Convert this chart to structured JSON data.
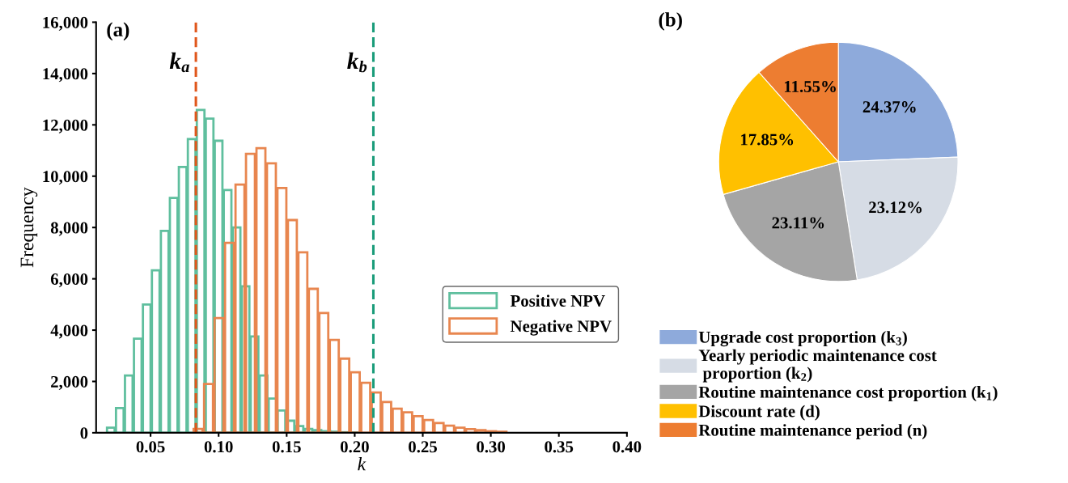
{
  "chart_data": [
    {
      "type": "bar",
      "title": "(a)",
      "xlabel": "k",
      "ylabel": "Frequency",
      "series": [
        {
          "name": "Positive NPV",
          "color": "#5fbf9e",
          "x": [
            0.0208,
            0.0274,
            0.034,
            0.0406,
            0.0472,
            0.0538,
            0.0604,
            0.067,
            0.0736,
            0.0802,
            0.0868,
            0.0934,
            0.1,
            0.1066,
            0.1132,
            0.1198,
            0.1264,
            0.133,
            0.1396,
            0.1462,
            0.1528,
            0.1594,
            0.166,
            0.1726,
            0.1792,
            0.1858,
            0.1924,
            0.199
          ],
          "values": [
            200,
            960,
            2230,
            3670,
            5000,
            6330,
            7870,
            9150,
            10360,
            11450,
            12580,
            12240,
            11380,
            9460,
            8000,
            5710,
            3750,
            2230,
            1330,
            870,
            470,
            260,
            150,
            100,
            60,
            40,
            20,
            10
          ]
        },
        {
          "name": "Negative NPV",
          "color": "#e8864f",
          "x": [
            0.0849,
            0.0926,
            0.1003,
            0.108,
            0.1157,
            0.1234,
            0.1311,
            0.1388,
            0.1465,
            0.1542,
            0.1619,
            0.1696,
            0.1773,
            0.185,
            0.1927,
            0.2004,
            0.2081,
            0.2158,
            0.2235,
            0.2312,
            0.2389,
            0.2466,
            0.2543,
            0.262,
            0.2697,
            0.2774,
            0.2851,
            0.2928,
            0.3005,
            0.3082
          ],
          "values": [
            150,
            1900,
            4470,
            7400,
            9670,
            10870,
            11090,
            10500,
            9540,
            8290,
            7030,
            5610,
            4670,
            3620,
            2890,
            2360,
            1950,
            1570,
            1200,
            940,
            800,
            650,
            500,
            380,
            280,
            200,
            140,
            100,
            60,
            40
          ]
        }
      ],
      "ref_lines": [
        {
          "axis": "x",
          "value": 0.0833,
          "label": "k$_{a}$",
          "color": "#e0561b",
          "line_style": "dashed"
        },
        {
          "axis": "x",
          "value": 0.2137,
          "label": "k$_{b}$",
          "color": "#1a9c7a",
          "line_style": "dashed"
        }
      ],
      "xlim": [
        0.01,
        0.4
      ],
      "xticks": [
        {
          "value": 0.05,
          "label": "0.05"
        },
        {
          "value": 0.1,
          "label": "0.10"
        },
        {
          "value": 0.15,
          "label": "0.15"
        },
        {
          "value": 0.2,
          "label": "0.20"
        },
        {
          "value": 0.25,
          "label": "0.25"
        },
        {
          "value": 0.3,
          "label": "0.30"
        },
        {
          "value": 0.35,
          "label": "0.35"
        },
        {
          "value": 0.4,
          "label": "0.40"
        }
      ],
      "ylim": [
        0,
        16000
      ],
      "yticks": [
        {
          "value": 0,
          "label": "0"
        },
        {
          "value": 2000,
          "label": "2,000"
        },
        {
          "value": 4000,
          "label": "4,000"
        },
        {
          "value": 6000,
          "label": "6,000"
        },
        {
          "value": 8000,
          "label": "8,000"
        },
        {
          "value": 10000,
          "label": "10,000"
        },
        {
          "value": 12000,
          "label": "12,000"
        },
        {
          "value": 14000,
          "label": "14,000"
        },
        {
          "value": 16000,
          "label": "16,000"
        }
      ],
      "legend": "lower right"
    },
    {
      "type": "pie",
      "title": "(b)",
      "categories": [
        "Upgrade cost proportion (k$_{3}$)",
        "Yearly periodic maintenance cost\n proportion (k$_{2}$)",
        "Routine maintenance cost proportion (k$_{1}$)",
        "Discount rate (d)",
        "Routine maintenance period (n)"
      ],
      "values": [
        24.37,
        23.12,
        23.11,
        17.85,
        11.55
      ],
      "value_labels": [
        "24.37%",
        "23.12%",
        "23.11%",
        "17.85%",
        "11.55%"
      ],
      "colors": [
        "#8eaadb",
        "#d6dce5",
        "#a5a5a5",
        "#ffc000",
        "#ed7d31"
      ],
      "legend": "bottom"
    }
  ]
}
